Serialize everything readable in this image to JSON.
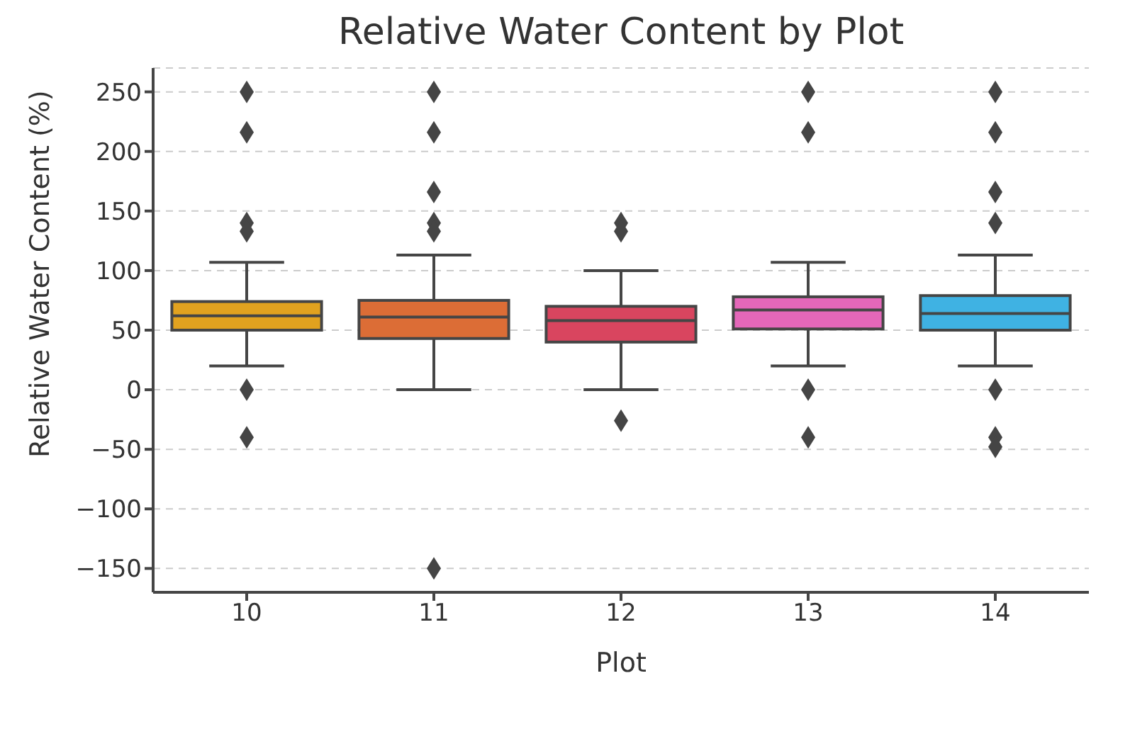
{
  "chart_data": {
    "type": "box",
    "title": "Relative Water Content by Plot",
    "xlabel": "Plot",
    "ylabel": "Relative Water Content (%)",
    "categories": [
      "10",
      "11",
      "12",
      "13",
      "14"
    ],
    "colors": [
      "#e1a21f",
      "#dc6d36",
      "#d9455f",
      "#e467b9",
      "#3fb2e3"
    ],
    "boxes": [
      {
        "low": 20,
        "q1": 50,
        "median": 62,
        "q3": 74,
        "high": 107,
        "outliers": [
          250,
          216,
          140,
          133,
          0,
          -40
        ]
      },
      {
        "low": 0,
        "q1": 43,
        "median": 61,
        "q3": 75,
        "high": 113,
        "outliers": [
          250,
          216,
          166,
          140,
          133,
          -150
        ]
      },
      {
        "low": 0,
        "q1": 40,
        "median": 58,
        "q3": 70,
        "high": 100,
        "outliers": [
          140,
          133,
          -26
        ]
      },
      {
        "low": 20,
        "q1": 51,
        "median": 67,
        "q3": 78,
        "high": 107,
        "outliers": [
          250,
          216,
          0,
          -40
        ]
      },
      {
        "low": 20,
        "q1": 50,
        "median": 64,
        "q3": 79,
        "high": 113,
        "outliers": [
          250,
          216,
          166,
          140,
          0,
          -40,
          -48
        ]
      }
    ],
    "ylim": [
      -170,
      270
    ],
    "yticks": [
      -150,
      -100,
      -50,
      0,
      50,
      100,
      150,
      200,
      250
    ],
    "grid": "y",
    "marker": "diamond"
  }
}
